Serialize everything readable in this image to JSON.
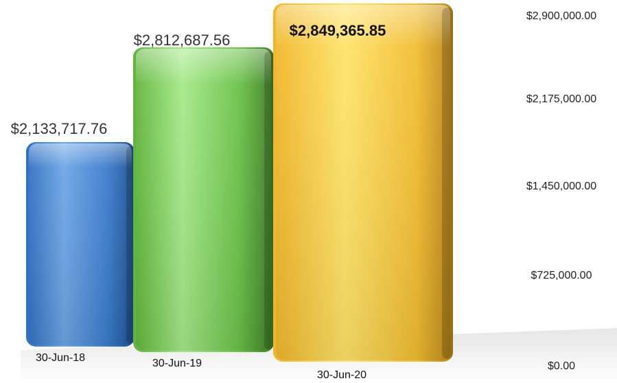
{
  "chart_data": {
    "type": "bar",
    "categories": [
      "30-Jun-18",
      "30-Jun-19",
      "30-Jun-20"
    ],
    "values": [
      2133717.76,
      2812687.56,
      2849365.85
    ],
    "value_labels": [
      "$2,133,717.76",
      "$2,812,687.56",
      "$2,849,365.85"
    ],
    "yticks": [
      0,
      725000,
      1450000,
      2175000,
      2900000
    ],
    "ytick_labels": [
      "$0.00",
      "$725,000.00",
      "$1,450,000.00",
      "$2,175,000.00",
      "$2,900,000.00"
    ],
    "ylim": [
      0,
      2900000
    ],
    "title": "",
    "xlabel": "",
    "ylabel": "",
    "grid": true,
    "colors": [
      "#4a86cf",
      "#7fcc5c",
      "#f5c93a"
    ]
  }
}
